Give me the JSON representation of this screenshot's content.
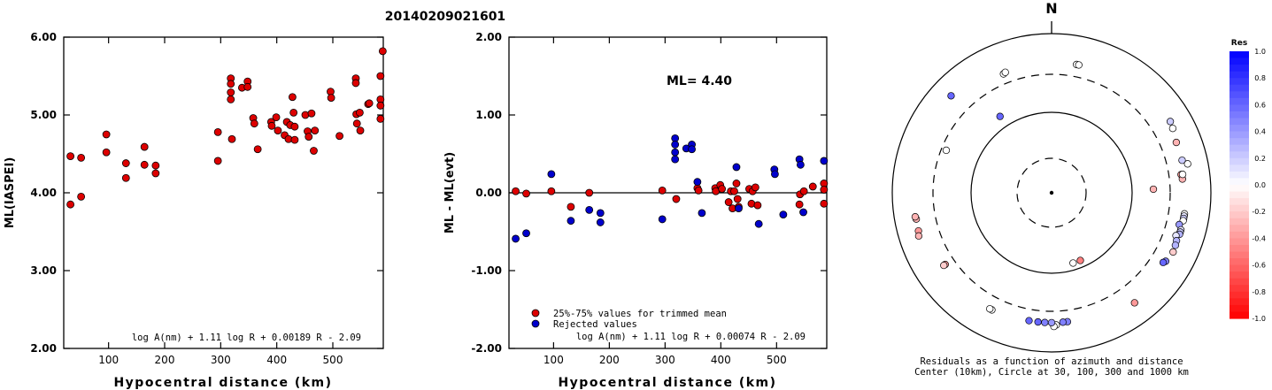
{
  "title": "20140209021601",
  "chart_data": [
    {
      "type": "scatter",
      "ylabel": "ML(IASPEI)",
      "xlabel": "Hypocentral distance (km)",
      "xlim": [
        20,
        590
      ],
      "ylim": [
        2.0,
        6.0
      ],
      "x_ticks": [
        "100",
        "200",
        "300",
        "400",
        "500"
      ],
      "x_tick_values": [
        100,
        200,
        300,
        400,
        500
      ],
      "y_ticks": [
        "2.00",
        "3.00",
        "4.00",
        "5.00",
        "6.00"
      ],
      "y_tick_values": [
        2,
        3,
        4,
        5,
        6
      ],
      "formula": "log A(nm) + 1.11 log R + 0.00189 R - 2.09",
      "series": [
        {
          "color": "#dd0000",
          "points": [
            [
              32,
              4.47
            ],
            [
              32,
              3.85
            ],
            [
              51,
              4.45
            ],
            [
              51,
              3.95
            ],
            [
              96,
              4.75
            ],
            [
              96,
              4.52
            ],
            [
              131,
              4.38
            ],
            [
              131,
              4.19
            ],
            [
              164,
              4.59
            ],
            [
              164,
              4.36
            ],
            [
              184,
              4.35
            ],
            [
              184,
              4.25
            ],
            [
              295,
              4.78
            ],
            [
              295,
              4.41
            ],
            [
              318,
              5.47
            ],
            [
              318,
              5.4
            ],
            [
              318,
              5.29
            ],
            [
              318,
              5.2
            ],
            [
              320,
              4.69
            ],
            [
              338,
              5.35
            ],
            [
              348,
              5.43
            ],
            [
              348,
              5.36
            ],
            [
              358,
              4.96
            ],
            [
              360,
              4.89
            ],
            [
              366,
              4.56
            ],
            [
              390,
              4.91
            ],
            [
              391,
              4.86
            ],
            [
              399,
              4.97
            ],
            [
              402,
              4.8
            ],
            [
              414,
              4.74
            ],
            [
              418,
              4.91
            ],
            [
              421,
              4.69
            ],
            [
              424,
              4.87
            ],
            [
              428,
              5.23
            ],
            [
              430,
              5.03
            ],
            [
              432,
              4.85
            ],
            [
              432,
              4.68
            ],
            [
              451,
              5.0
            ],
            [
              455,
              4.79
            ],
            [
              457,
              4.72
            ],
            [
              462,
              5.02
            ],
            [
              466,
              4.54
            ],
            [
              468,
              4.8
            ],
            [
              496,
              5.3
            ],
            [
              497,
              5.22
            ],
            [
              512,
              4.73
            ],
            [
              541,
              5.47
            ],
            [
              541,
              5.41
            ],
            [
              542,
              5.01
            ],
            [
              543,
              4.89
            ],
            [
              548,
              5.03
            ],
            [
              549,
              4.8
            ],
            [
              563,
              5.14
            ],
            [
              565,
              5.15
            ],
            [
              585,
              5.5
            ],
            [
              585,
              5.2
            ],
            [
              585,
              5.12
            ],
            [
              585,
              4.95
            ],
            [
              589,
              5.82
            ]
          ]
        }
      ]
    },
    {
      "type": "scatter",
      "ylabel": "ML - ML(evt)",
      "xlabel": "Hypocentral distance (km)",
      "xlim": [
        20,
        590
      ],
      "ylim": [
        -2.0,
        2.0
      ],
      "x_ticks": [
        "100",
        "200",
        "300",
        "400",
        "500"
      ],
      "x_tick_values": [
        100,
        200,
        300,
        400,
        500
      ],
      "y_ticks": [
        "-2.00",
        "-1.00",
        "0.00",
        "1.00",
        "2.00"
      ],
      "y_tick_values": [
        -2,
        -1,
        0,
        1,
        2
      ],
      "annotation": "ML= 4.40",
      "reference_line": 0.0,
      "legend": [
        "25%-75% values for trimmed mean",
        "Rejected values"
      ],
      "legend_position": "bottom-left",
      "formula": "log A(nm) + 1.11 log R + 0.00074 R - 2.09",
      "series": [
        {
          "name": "25%-75% values for trimmed mean",
          "color": "#dd0000",
          "points": [
            [
              32,
              0.02
            ],
            [
              51,
              -0.01
            ],
            [
              96,
              0.02
            ],
            [
              131,
              -0.18
            ],
            [
              164,
              0.0
            ],
            [
              295,
              0.03
            ],
            [
              320,
              -0.08
            ],
            [
              358,
              0.06
            ],
            [
              360,
              0.03
            ],
            [
              390,
              0.06
            ],
            [
              391,
              0.02
            ],
            [
              399,
              0.1
            ],
            [
              402,
              0.05
            ],
            [
              414,
              -0.12
            ],
            [
              418,
              0.02
            ],
            [
              421,
              -0.2
            ],
            [
              424,
              0.02
            ],
            [
              428,
              0.12
            ],
            [
              430,
              -0.08
            ],
            [
              432,
              -0.18
            ],
            [
              451,
              0.05
            ],
            [
              455,
              -0.14
            ],
            [
              457,
              0.02
            ],
            [
              462,
              0.07
            ],
            [
              466,
              -0.16
            ],
            [
              541,
              -0.15
            ],
            [
              542,
              -0.02
            ],
            [
              549,
              0.02
            ],
            [
              565,
              0.08
            ],
            [
              585,
              0.12
            ],
            [
              585,
              -0.14
            ],
            [
              585,
              0.04
            ]
          ]
        },
        {
          "name": "Rejected values",
          "color": "#0000cc",
          "points": [
            [
              32,
              -0.59
            ],
            [
              51,
              -0.52
            ],
            [
              96,
              0.24
            ],
            [
              131,
              -0.36
            ],
            [
              164,
              -0.22
            ],
            [
              184,
              -0.26
            ],
            [
              184,
              -0.38
            ],
            [
              295,
              -0.34
            ],
            [
              318,
              0.7
            ],
            [
              318,
              0.62
            ],
            [
              318,
              0.52
            ],
            [
              318,
              0.43
            ],
            [
              338,
              0.57
            ],
            [
              348,
              0.62
            ],
            [
              348,
              0.56
            ],
            [
              366,
              -0.26
            ],
            [
              358,
              0.14
            ],
            [
              428,
              0.33
            ],
            [
              432,
              -0.2
            ],
            [
              468,
              -0.4
            ],
            [
              496,
              0.3
            ],
            [
              497,
              0.24
            ],
            [
              512,
              -0.28
            ],
            [
              541,
              0.43
            ],
            [
              543,
              0.36
            ],
            [
              548,
              -0.25
            ],
            [
              585,
              0.41
            ]
          ]
        }
      ]
    },
    {
      "type": "scatter",
      "subtype": "polar",
      "north_label": "N",
      "caption_line1": "Residuals as a function of azimuth and distance",
      "caption_line2": "Center (10km), Circle at 30, 100, 300 and 1000 km",
      "rings_km": [
        10,
        30,
        100,
        300,
        1000
      ],
      "colorbar": {
        "title": "Res",
        "ticks": [
          "1.0",
          "0.8",
          "0.6",
          "0.4",
          "0.2",
          "0.0",
          "-0.2",
          "-0.4",
          "-0.6",
          "-0.8",
          "-1.0"
        ],
        "tick_values": [
          1.0,
          0.8,
          0.6,
          0.4,
          0.2,
          0.0,
          -0.2,
          -0.4,
          -0.6,
          -0.8,
          -1.0
        ],
        "positive_color": "#0000ff",
        "negative_color": "#ff0000"
      },
      "points": [
        {
          "azimuth": 11,
          "distance_km": 430,
          "residual": 0.0
        },
        {
          "azimuth": 12,
          "distance_km": 430,
          "residual": 0.0
        },
        {
          "azimuth": 338,
          "distance_km": 400,
          "residual": 0.0
        },
        {
          "azimuth": 339,
          "distance_km": 410,
          "residual": 0.0
        },
        {
          "azimuth": 314,
          "distance_km": 560,
          "residual": 0.6
        },
        {
          "azimuth": 326,
          "distance_km": 140,
          "residual": 0.6
        },
        {
          "azimuth": 292,
          "distance_km": 260,
          "residual": 0.0
        },
        {
          "azimuth": 59,
          "distance_km": 540,
          "residual": 0.2
        },
        {
          "azimuth": 62,
          "distance_km": 520,
          "residual": 0.0
        },
        {
          "azimuth": 68,
          "distance_km": 480,
          "residual": -0.3
        },
        {
          "azimuth": 82,
          "distance_km": 430,
          "residual": -0.4
        },
        {
          "azimuth": 84,
          "distance_km": 440,
          "residual": -0.3
        },
        {
          "azimuth": 82,
          "distance_km": 450,
          "residual": 0.0
        },
        {
          "azimuth": 76,
          "distance_km": 480,
          "residual": 0.2
        },
        {
          "azimuth": 78,
          "distance_km": 550,
          "residual": 0.0
        },
        {
          "azimuth": 88,
          "distance_km": 185,
          "residual": -0.3
        },
        {
          "azimuth": 99,
          "distance_km": 480,
          "residual": 0.0
        },
        {
          "azimuth": 100,
          "distance_km": 480,
          "residual": 0.1
        },
        {
          "azimuth": 101,
          "distance_km": 480,
          "residual": 0.2
        },
        {
          "azimuth": 102,
          "distance_km": 480,
          "residual": 0.0
        },
        {
          "azimuth": 104,
          "distance_km": 440,
          "residual": 0.4
        },
        {
          "azimuth": 106,
          "distance_km": 480,
          "residual": 0.1
        },
        {
          "azimuth": 107,
          "distance_km": 480,
          "residual": 0.2
        },
        {
          "azimuth": 108,
          "distance_km": 480,
          "residual": 0.3
        },
        {
          "azimuth": 109,
          "distance_km": 440,
          "residual": 0.1
        },
        {
          "azimuth": 111,
          "distance_km": 470,
          "residual": 0.3
        },
        {
          "azimuth": 113,
          "distance_km": 480,
          "residual": 0.3
        },
        {
          "azimuth": 116,
          "distance_km": 490,
          "residual": -0.2
        },
        {
          "azimuth": 121,
          "distance_km": 460,
          "residual": 0.5
        },
        {
          "azimuth": 122,
          "distance_km": 440,
          "residual": 0.6
        },
        {
          "azimuth": 143,
          "distance_km": 530,
          "residual": -0.4
        },
        {
          "azimuth": 173,
          "distance_km": 420,
          "residual": 0.5
        },
        {
          "azimuth": 175,
          "distance_km": 420,
          "residual": 0.5
        },
        {
          "azimuth": 178,
          "distance_km": 450,
          "residual": 0.0
        },
        {
          "azimuth": 179,
          "distance_km": 470,
          "residual": 0.0
        },
        {
          "azimuth": 180,
          "distance_km": 420,
          "residual": 0.4
        },
        {
          "azimuth": 183,
          "distance_km": 420,
          "residual": 0.5
        },
        {
          "azimuth": 186,
          "distance_km": 420,
          "residual": 0.6
        },
        {
          "azimuth": 190,
          "distance_km": 420,
          "residual": 0.6
        },
        {
          "azimuth": 207,
          "distance_km": 440,
          "residual": 0.0
        },
        {
          "azimuth": 208,
          "distance_km": 440,
          "residual": 0.0
        },
        {
          "azimuth": 163,
          "distance_km": 75,
          "residual": 0.0
        },
        {
          "azimuth": 157,
          "distance_km": 75,
          "residual": -0.5
        },
        {
          "azimuth": 236,
          "distance_km": 400,
          "residual": -0.4
        },
        {
          "azimuth": 236,
          "distance_km": 420,
          "residual": -0.2
        },
        {
          "azimuth": 254,
          "distance_km": 540,
          "residual": -0.4
        },
        {
          "azimuth": 252,
          "distance_km": 560,
          "residual": -0.3
        },
        {
          "azimuth": 259,
          "distance_km": 530,
          "residual": -0.3
        },
        {
          "azimuth": 260,
          "distance_km": 540,
          "residual": -0.3
        }
      ]
    }
  ]
}
